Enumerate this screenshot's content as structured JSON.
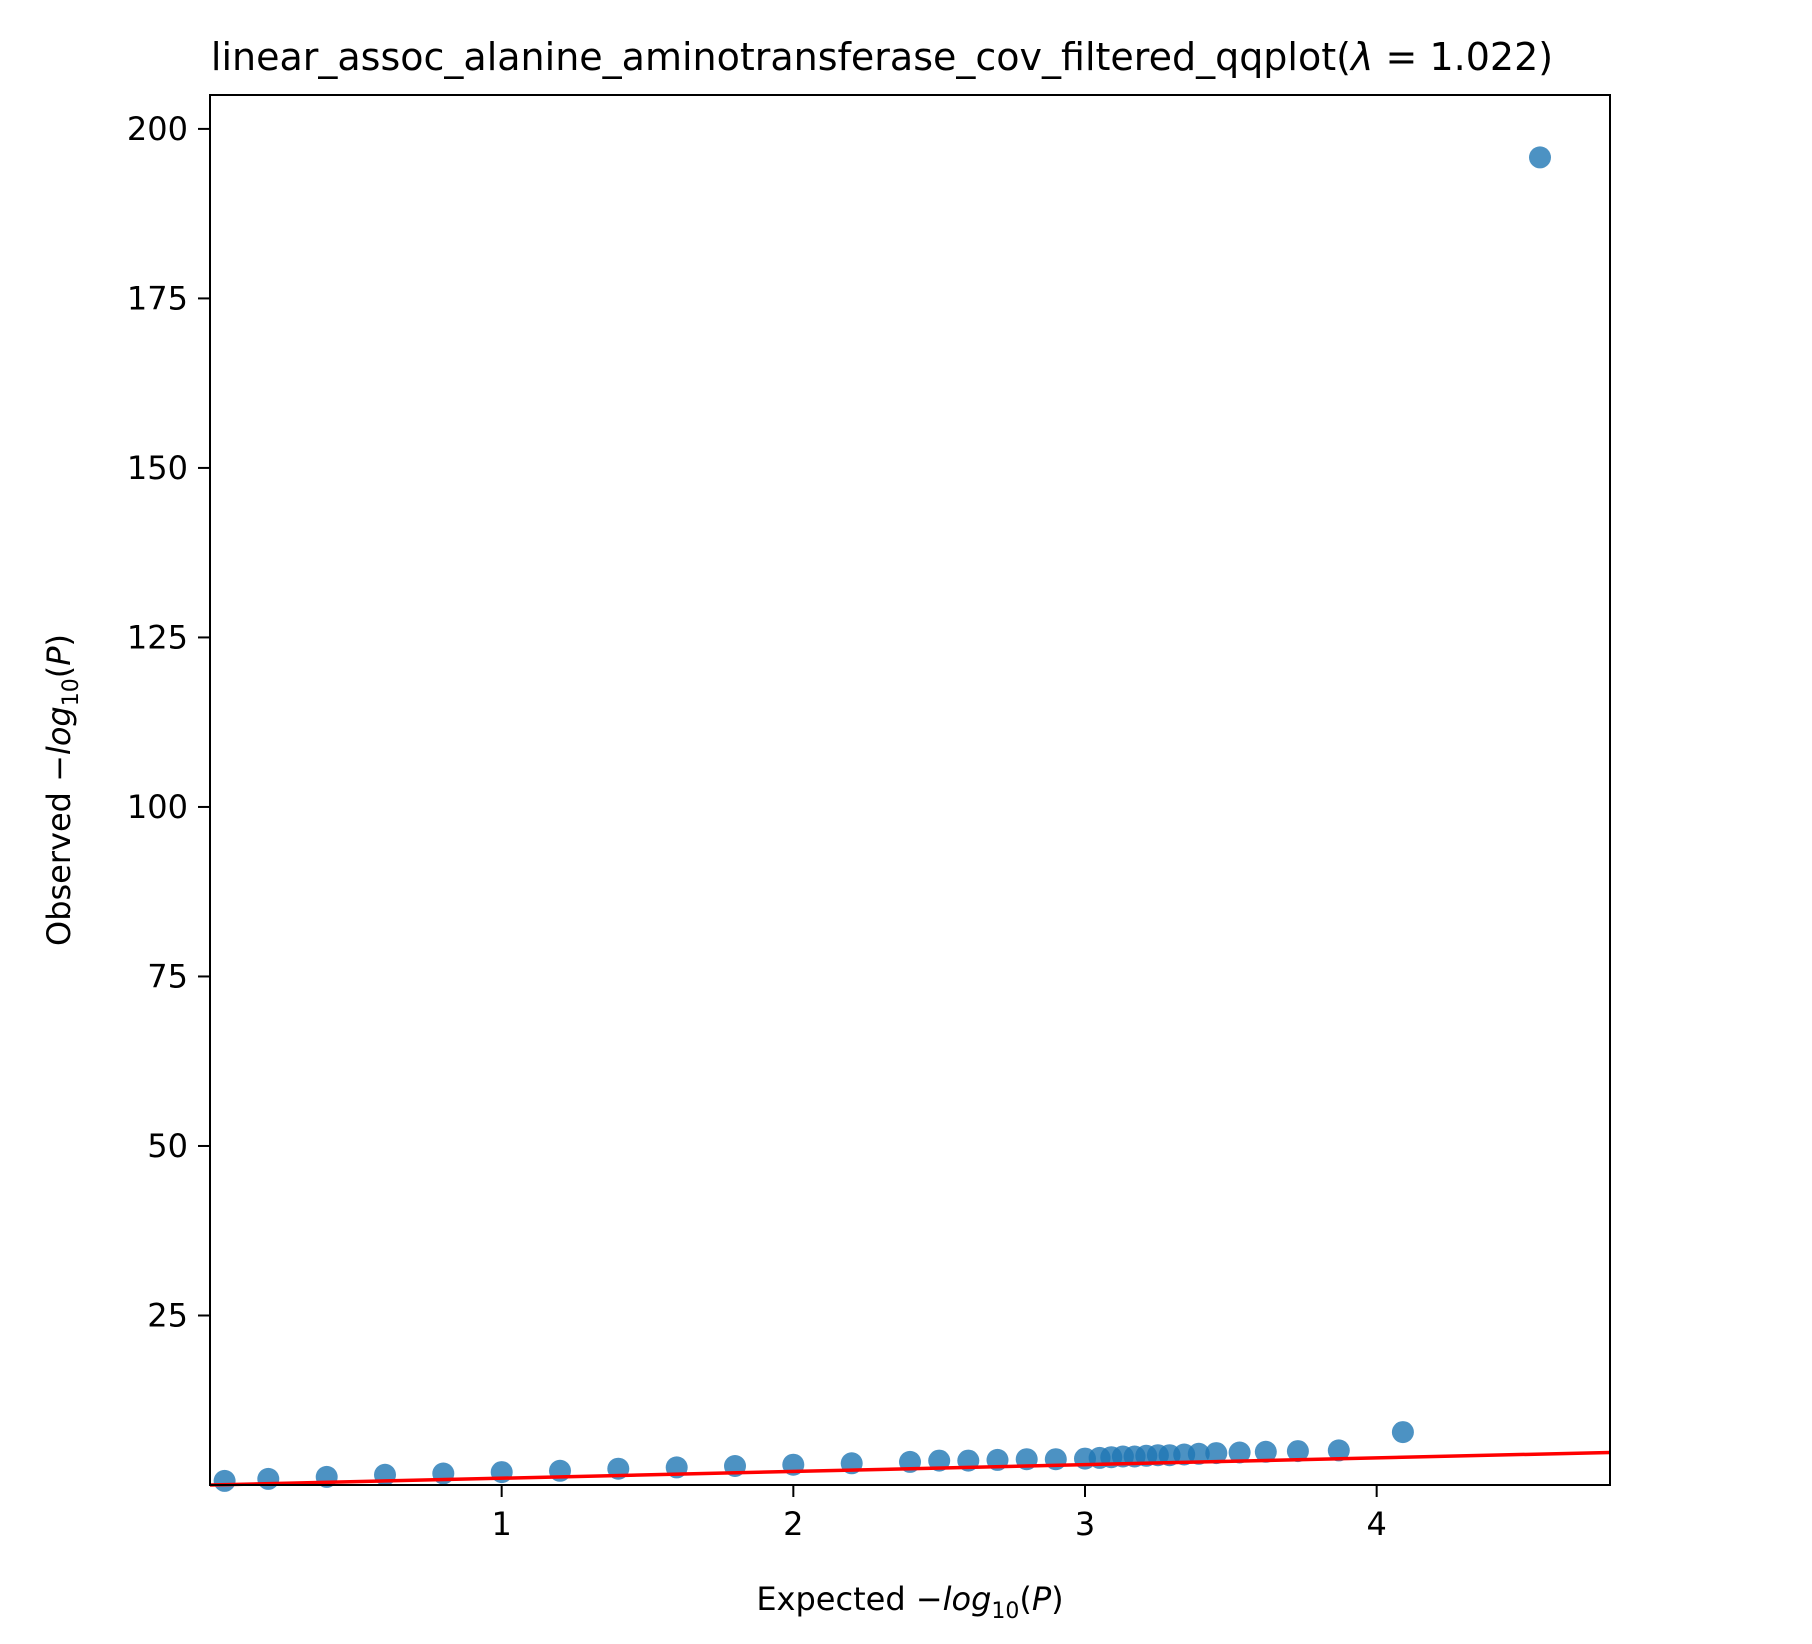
{
  "chart_data": {
    "type": "scatter",
    "title_prefix": "linear_assoc_alanine_aminotransferase_cov_filtered_qqplot(",
    "title_lambda_symbol": "λ",
    "title_lambda_value": " = 1.022)",
    "xlabel_prefix": "Expected −",
    "ylabel_prefix": "Observed −",
    "label_log": "log",
    "label_sub": "10",
    "label_suffix_open": "(",
    "label_var": "P",
    "label_suffix_close": ")",
    "xlim": [
      0.0,
      4.8
    ],
    "ylim": [
      0.0,
      205
    ],
    "xticks": [
      1,
      2,
      3,
      4
    ],
    "yticks": [
      25,
      50,
      75,
      100,
      125,
      150,
      175,
      200
    ],
    "point_color": "#1f77b4",
    "line_color": "#ff0000",
    "reference_line": {
      "x": [
        0,
        4.8
      ],
      "y": [
        0,
        4.8
      ]
    },
    "series": [
      {
        "x": [
          0.05,
          0.2,
          0.4,
          0.6,
          0.8,
          1.0,
          1.2,
          1.4,
          1.6,
          1.8,
          2.0,
          2.2,
          2.4,
          2.5,
          2.6,
          2.7,
          2.8,
          2.9,
          3.0,
          3.05,
          3.09,
          3.13,
          3.17,
          3.21,
          3.25,
          3.29,
          3.34,
          3.39,
          3.45,
          3.53,
          3.62,
          3.73,
          3.87,
          4.09,
          4.56
        ],
        "y": [
          0.6,
          0.9,
          1.2,
          1.5,
          1.7,
          1.9,
          2.1,
          2.4,
          2.6,
          2.8,
          3.0,
          3.2,
          3.4,
          3.6,
          3.6,
          3.7,
          3.8,
          3.8,
          3.9,
          4.0,
          4.1,
          4.2,
          4.2,
          4.3,
          4.4,
          4.4,
          4.5,
          4.6,
          4.7,
          4.8,
          4.9,
          5.0,
          5.1,
          7.8,
          195.8
        ]
      }
    ]
  }
}
